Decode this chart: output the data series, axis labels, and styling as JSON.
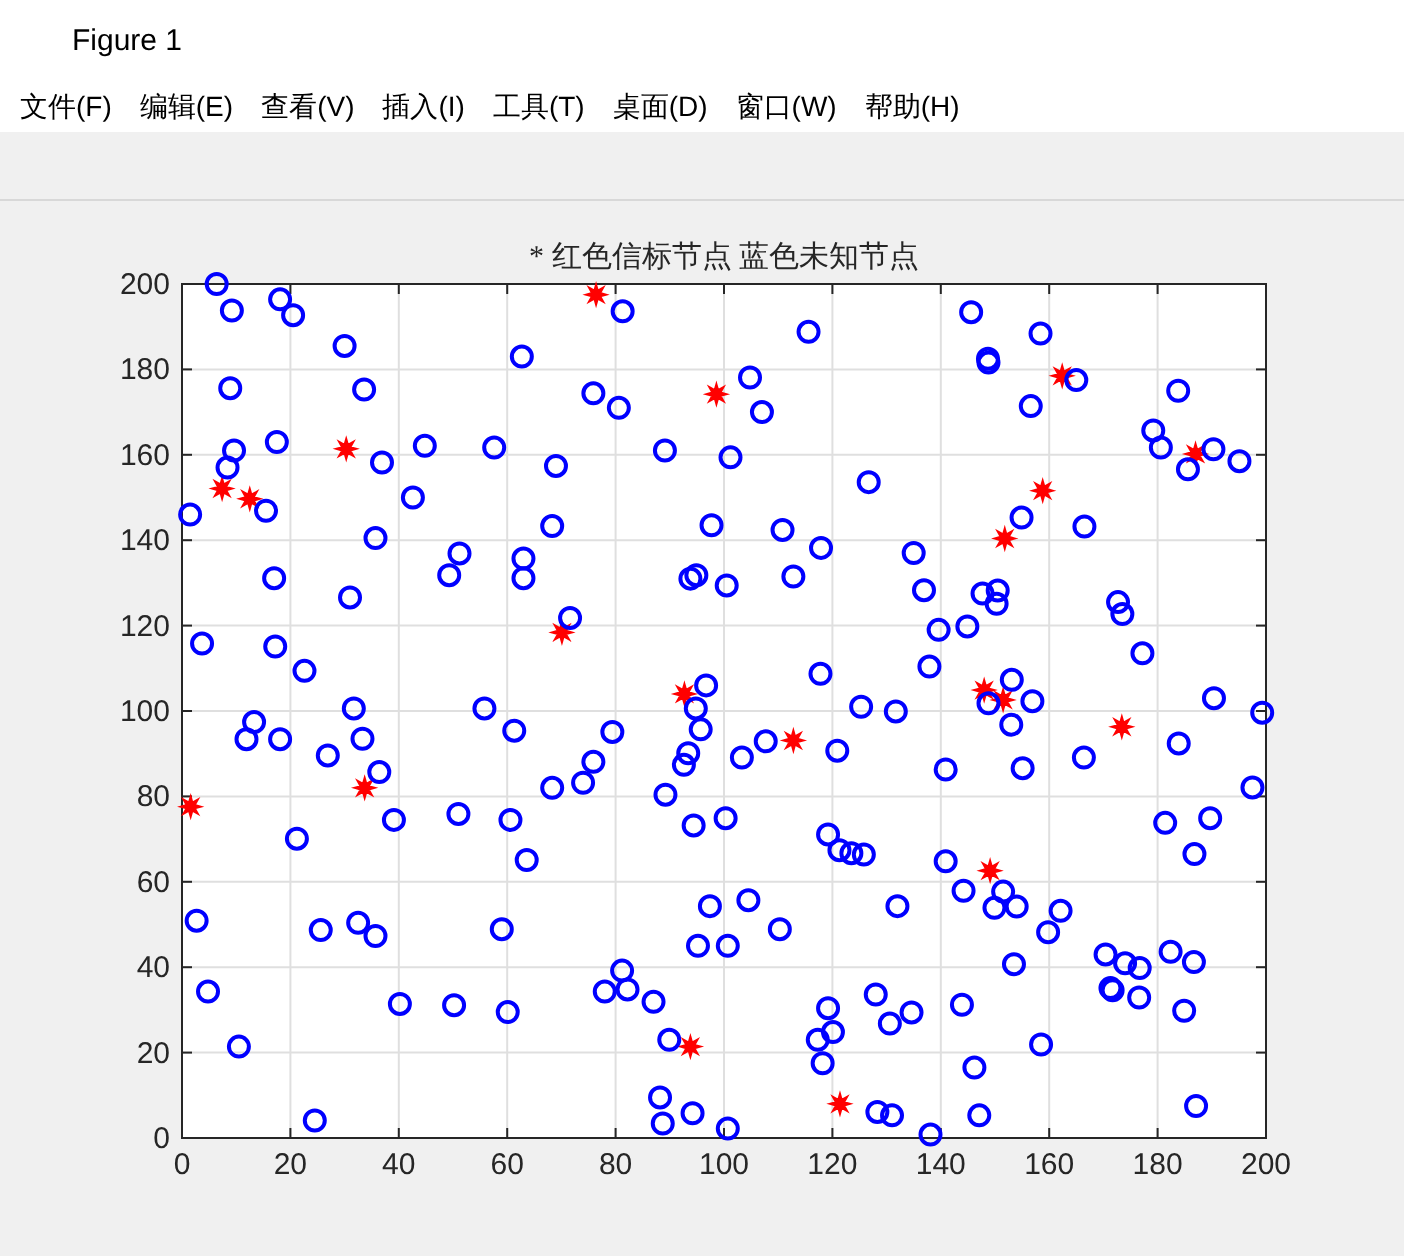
{
  "chart_data": {
    "type": "scatter",
    "title": "* 红色信标节点 蓝色未知节点",
    "annotations": [
      "Figure 1",
      "文件(F)",
      "编辑(E)",
      "查看(V)",
      "插入(I)",
      "工具(T)",
      "桌面(D)",
      "窗口(W)",
      "帮助(H)"
    ],
    "xlim": [
      0,
      200
    ],
    "ylim": [
      0,
      200
    ],
    "xticks": [
      0,
      20,
      40,
      60,
      80,
      100,
      120,
      140,
      160,
      180,
      200
    ],
    "yticks": [
      0,
      20,
      40,
      60,
      80,
      100,
      120,
      140,
      160,
      180,
      200
    ],
    "grid": true,
    "series": [
      {
        "color": "#ff0000",
        "marker": "star",
        "x": [
          76.4,
          98.6,
          30.3,
          7.4,
          12.5,
          162.4,
          187.0,
          158.8,
          151.8,
          70.1,
          92.7,
          148.0,
          151.5,
          173.4,
          112.8,
          33.7,
          1.6,
          149.1,
          93.8,
          121.4
        ],
        "values": [
          197.5,
          174.2,
          161.4,
          152.1,
          149.7,
          178.5,
          160.2,
          151.6,
          140.4,
          118.4,
          104.0,
          104.9,
          102.6,
          96.3,
          93.1,
          82.0,
          77.6,
          62.6,
          21.4,
          8.0
        ]
      },
      {
        "color": "#0000ff",
        "marker": "circle",
        "x": [
          6.4,
          9.2,
          18.1,
          20.5,
          30.0,
          62.7,
          8.9,
          33.6,
          17.5,
          9.6,
          8.4,
          44.8,
          57.6,
          36.9,
          15.5,
          1.5,
          42.6,
          35.7,
          51.2,
          49.3,
          63.0,
          63.0,
          17.0,
          31.0,
          3.7,
          17.2,
          22.6,
          31.7,
          55.8,
          81.3,
          115.6,
          104.8,
          75.9,
          80.6,
          107.0,
          89.1,
          101.2,
          69.0,
          126.7,
          68.3,
          97.7,
          110.8,
          117.9,
          135.0,
          93.8,
          94.9,
          100.5,
          112.8,
          71.6,
          117.8,
          96.7,
          94.8,
          125.3,
          131.7,
          145.6,
          158.4,
          148.7,
          148.8,
          165.0,
          183.8,
          156.6,
          179.2,
          180.6,
          190.3,
          195.1,
          185.6,
          154.9,
          166.5,
          136.9,
          147.7,
          150.5,
          150.3,
          172.7,
          173.5,
          139.6,
          144.9,
          177.2,
          137.9,
          148.8,
          153.1,
          156.9,
          190.4,
          199.3,
          13.3,
          11.9,
          18.1,
          26.9,
          33.3,
          36.4,
          39.1,
          21.2,
          51.0,
          60.6,
          63.6,
          68.3,
          61.3,
          2.7,
          25.6,
          32.5,
          35.7,
          59.0,
          4.8,
          40.2,
          50.2,
          60.1,
          10.5,
          24.5,
          79.4,
          95.7,
          75.9,
          74.0,
          93.4,
          92.6,
          103.3,
          107.7,
          120.9,
          89.2,
          100.3,
          94.4,
          119.2,
          121.3,
          123.5,
          125.8,
          132.0,
          104.5,
          97.4,
          110.3,
          95.2,
          100.7,
          81.2,
          78.0,
          82.2,
          87.0,
          89.9,
          119.2,
          120.1,
          117.3,
          118.2,
          128.0,
          130.6,
          88.2,
          88.7,
          94.2,
          100.7,
          128.3,
          131.0,
          153.0,
          183.9,
          140.9,
          155.1,
          166.4,
          197.5,
          181.4,
          189.7,
          186.8,
          140.9,
          144.2,
          151.5,
          149.9,
          154.0,
          162.1,
          159.8,
          153.5,
          170.4,
          174.0,
          176.7,
          182.4,
          186.7,
          171.3,
          171.7,
          176.6,
          184.9,
          134.6,
          143.9,
          158.5,
          146.2,
          147.1,
          138.1,
          187.1
        ],
        "values": [
          200.0,
          193.8,
          196.4,
          192.7,
          185.5,
          183.0,
          175.6,
          175.3,
          163.0,
          161.0,
          157.0,
          162.1,
          161.7,
          158.2,
          146.9,
          146.0,
          150.0,
          140.5,
          136.9,
          131.8,
          135.7,
          131.1,
          131.1,
          126.6,
          115.8,
          115.1,
          109.4,
          100.6,
          100.6,
          193.6,
          188.8,
          178.1,
          174.4,
          171.0,
          170.0,
          161.0,
          159.4,
          157.4,
          153.6,
          143.3,
          143.5,
          142.4,
          138.2,
          137.0,
          131.0,
          131.8,
          129.4,
          131.5,
          121.8,
          108.7,
          106.0,
          100.6,
          101.0,
          99.9,
          193.4,
          188.4,
          182.5,
          181.6,
          177.5,
          175.0,
          171.4,
          165.7,
          161.7,
          161.3,
          158.5,
          156.6,
          145.3,
          143.2,
          128.3,
          127.5,
          128.2,
          125.1,
          125.5,
          122.7,
          119.0,
          119.8,
          113.5,
          110.4,
          101.8,
          107.3,
          102.3,
          103.0,
          99.6,
          97.4,
          93.4,
          93.4,
          89.6,
          93.5,
          85.7,
          74.5,
          70.1,
          75.9,
          74.5,
          65.1,
          82.0,
          95.4,
          50.9,
          48.7,
          50.4,
          47.3,
          48.9,
          34.3,
          31.4,
          31.1,
          29.5,
          21.4,
          4.1,
          95.1,
          95.7,
          88.1,
          83.2,
          90.1,
          87.4,
          89.1,
          92.9,
          90.7,
          80.4,
          74.9,
          73.2,
          71.1,
          67.4,
          66.7,
          66.4,
          54.3,
          55.7,
          54.3,
          48.9,
          45.0,
          45.0,
          39.2,
          34.3,
          34.8,
          31.9,
          23.0,
          30.4,
          24.8,
          23.0,
          17.5,
          33.6,
          26.8,
          9.5,
          3.4,
          5.8,
          2.2,
          6.1,
          5.3,
          96.8,
          92.4,
          86.3,
          86.6,
          89.1,
          82.1,
          73.8,
          74.9,
          66.5,
          64.8,
          57.9,
          57.7,
          53.9,
          54.2,
          53.2,
          48.2,
          40.7,
          43.0,
          40.9,
          39.8,
          43.6,
          41.2,
          35.1,
          34.6,
          32.9,
          29.8,
          29.4,
          31.2,
          21.9,
          16.5,
          5.3,
          0.8,
          7.5
        ]
      }
    ]
  }
}
